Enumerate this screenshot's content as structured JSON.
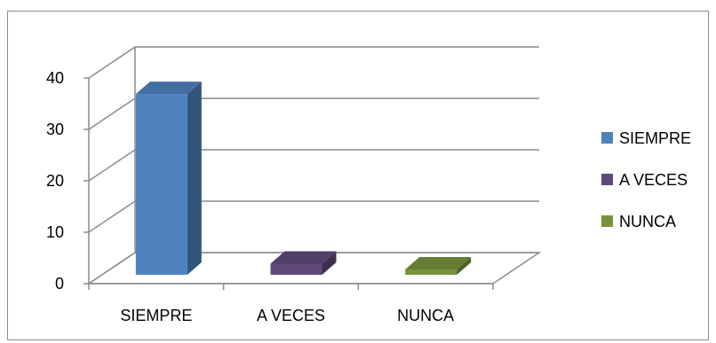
{
  "chart_data": {
    "type": "bar",
    "three_d": true,
    "title": "",
    "xlabel": "",
    "ylabel": "",
    "categories": [
      "SIEMPRE",
      "A VECES",
      "NUNCA"
    ],
    "values": [
      35.5,
      2.5,
      0.5
    ],
    "colors": [
      "#4f81bd",
      "#604a7b",
      "#77933c"
    ],
    "ylim": [
      0,
      40
    ],
    "yticks": [
      "0",
      "10",
      "20",
      "30",
      "40"
    ],
    "grid": true,
    "legend": {
      "position": "right",
      "entries": [
        "SIEMPRE",
        "A VECES",
        "NUNCA"
      ]
    }
  }
}
